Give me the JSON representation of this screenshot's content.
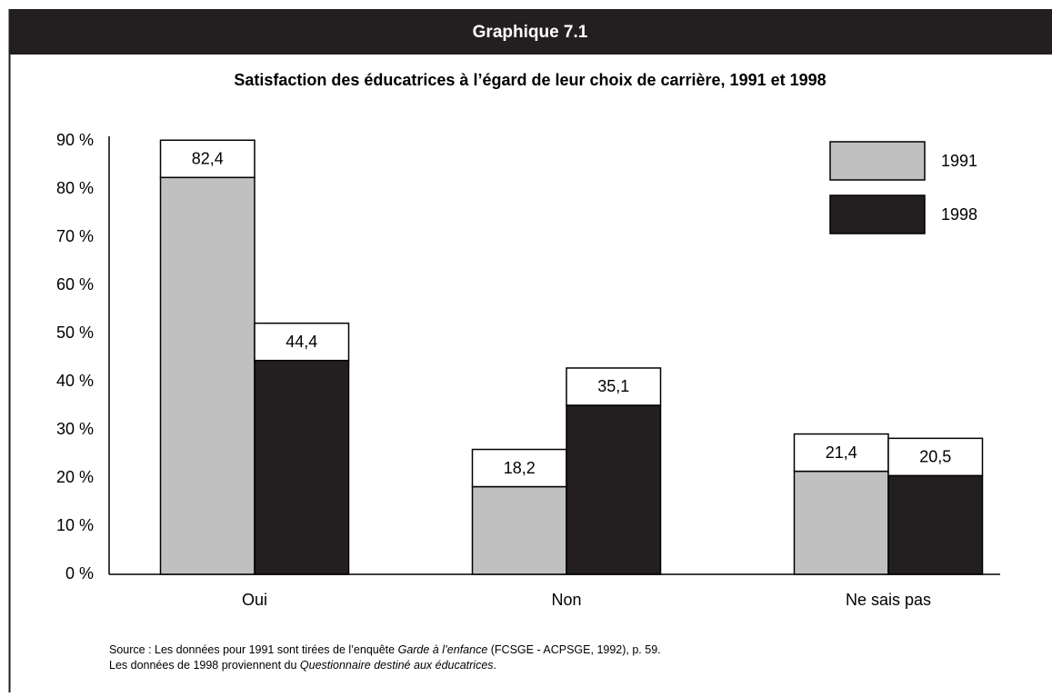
{
  "chart_data": {
    "type": "bar",
    "header": "Graphique 7.1",
    "title": "Satisfaction des éducatrices à l’égard de leur choix de carrière, 1991 et 1998",
    "categories": [
      "Oui",
      "Non",
      "Ne sais pas"
    ],
    "series": [
      {
        "name": "1991",
        "color": "#c0c0c0",
        "values": [
          82.4,
          18.2,
          21.4
        ],
        "value_labels": [
          "82,4",
          "18,2",
          "21,4"
        ]
      },
      {
        "name": "1998",
        "color": "#231f20",
        "values": [
          44.4,
          35.1,
          20.5
        ],
        "value_labels": [
          "44,4",
          "35,1",
          "20,5"
        ]
      }
    ],
    "ylim": [
      0,
      90
    ],
    "yticks": [
      {
        "value": 0,
        "label": "0 %"
      },
      {
        "value": 10,
        "label": "10 %"
      },
      {
        "value": 20,
        "label": "20 %"
      },
      {
        "value": 30,
        "label": "30 %"
      },
      {
        "value": 40,
        "label": "40 %"
      },
      {
        "value": 50,
        "label": "50 %"
      },
      {
        "value": 60,
        "label": "60 %"
      },
      {
        "value": 70,
        "label": "70 %"
      },
      {
        "value": 80,
        "label": "80 %"
      },
      {
        "value": 90,
        "label": "90 %"
      }
    ],
    "grid": false,
    "legend": "top-right",
    "source": [
      [
        "Source : Les données pour 1991 sont tirées de l’enquête ",
        "Garde à l’enfance",
        " (FCSGE - ACPSGE, 1992), p. 59."
      ],
      [
        "Les données de 1998 proviennent du ",
        "Questionnaire destiné aux éducatrices",
        "."
      ]
    ]
  }
}
